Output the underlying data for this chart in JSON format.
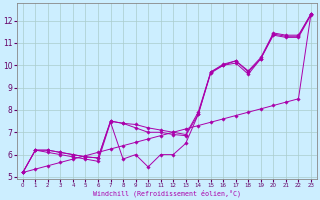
{
  "xlabel": "Windchill (Refroidissement éolien,°C)",
  "background_color": "#cceeff",
  "grid_color": "#aacccc",
  "line_color": "#aa00aa",
  "xlim": [
    -0.5,
    23.5
  ],
  "ylim": [
    4.9,
    12.8
  ],
  "yticks": [
    5,
    6,
    7,
    8,
    9,
    10,
    11,
    12
  ],
  "xticks": [
    0,
    1,
    2,
    3,
    4,
    5,
    6,
    7,
    8,
    9,
    10,
    11,
    12,
    13,
    14,
    15,
    16,
    17,
    18,
    19,
    20,
    21,
    22,
    23
  ],
  "series": [
    [
      5.2,
      5.35,
      5.5,
      5.65,
      5.8,
      5.95,
      6.1,
      6.25,
      6.4,
      6.55,
      6.7,
      6.85,
      7.0,
      7.15,
      7.3,
      7.45,
      7.6,
      7.75,
      7.9,
      8.05,
      8.2,
      8.35,
      8.5,
      12.3
    ],
    [
      5.2,
      6.2,
      6.2,
      6.1,
      6.0,
      5.9,
      5.85,
      7.5,
      7.4,
      7.2,
      7.0,
      7.0,
      6.9,
      6.85,
      7.8,
      9.7,
      10.0,
      10.2,
      9.7,
      10.3,
      11.4,
      11.3,
      11.3,
      12.3
    ],
    [
      5.2,
      6.2,
      6.2,
      6.1,
      6.0,
      5.9,
      5.85,
      7.5,
      7.4,
      7.35,
      7.2,
      7.1,
      7.0,
      6.9,
      7.9,
      9.7,
      10.05,
      10.2,
      9.75,
      10.35,
      11.45,
      11.35,
      11.35,
      12.3
    ],
    [
      5.2,
      6.2,
      6.1,
      6.0,
      5.9,
      5.8,
      5.7,
      7.45,
      5.8,
      6.0,
      5.45,
      6.0,
      6.0,
      6.5,
      7.8,
      9.65,
      10.0,
      10.1,
      9.6,
      10.3,
      11.35,
      11.25,
      11.25,
      12.25
    ]
  ]
}
